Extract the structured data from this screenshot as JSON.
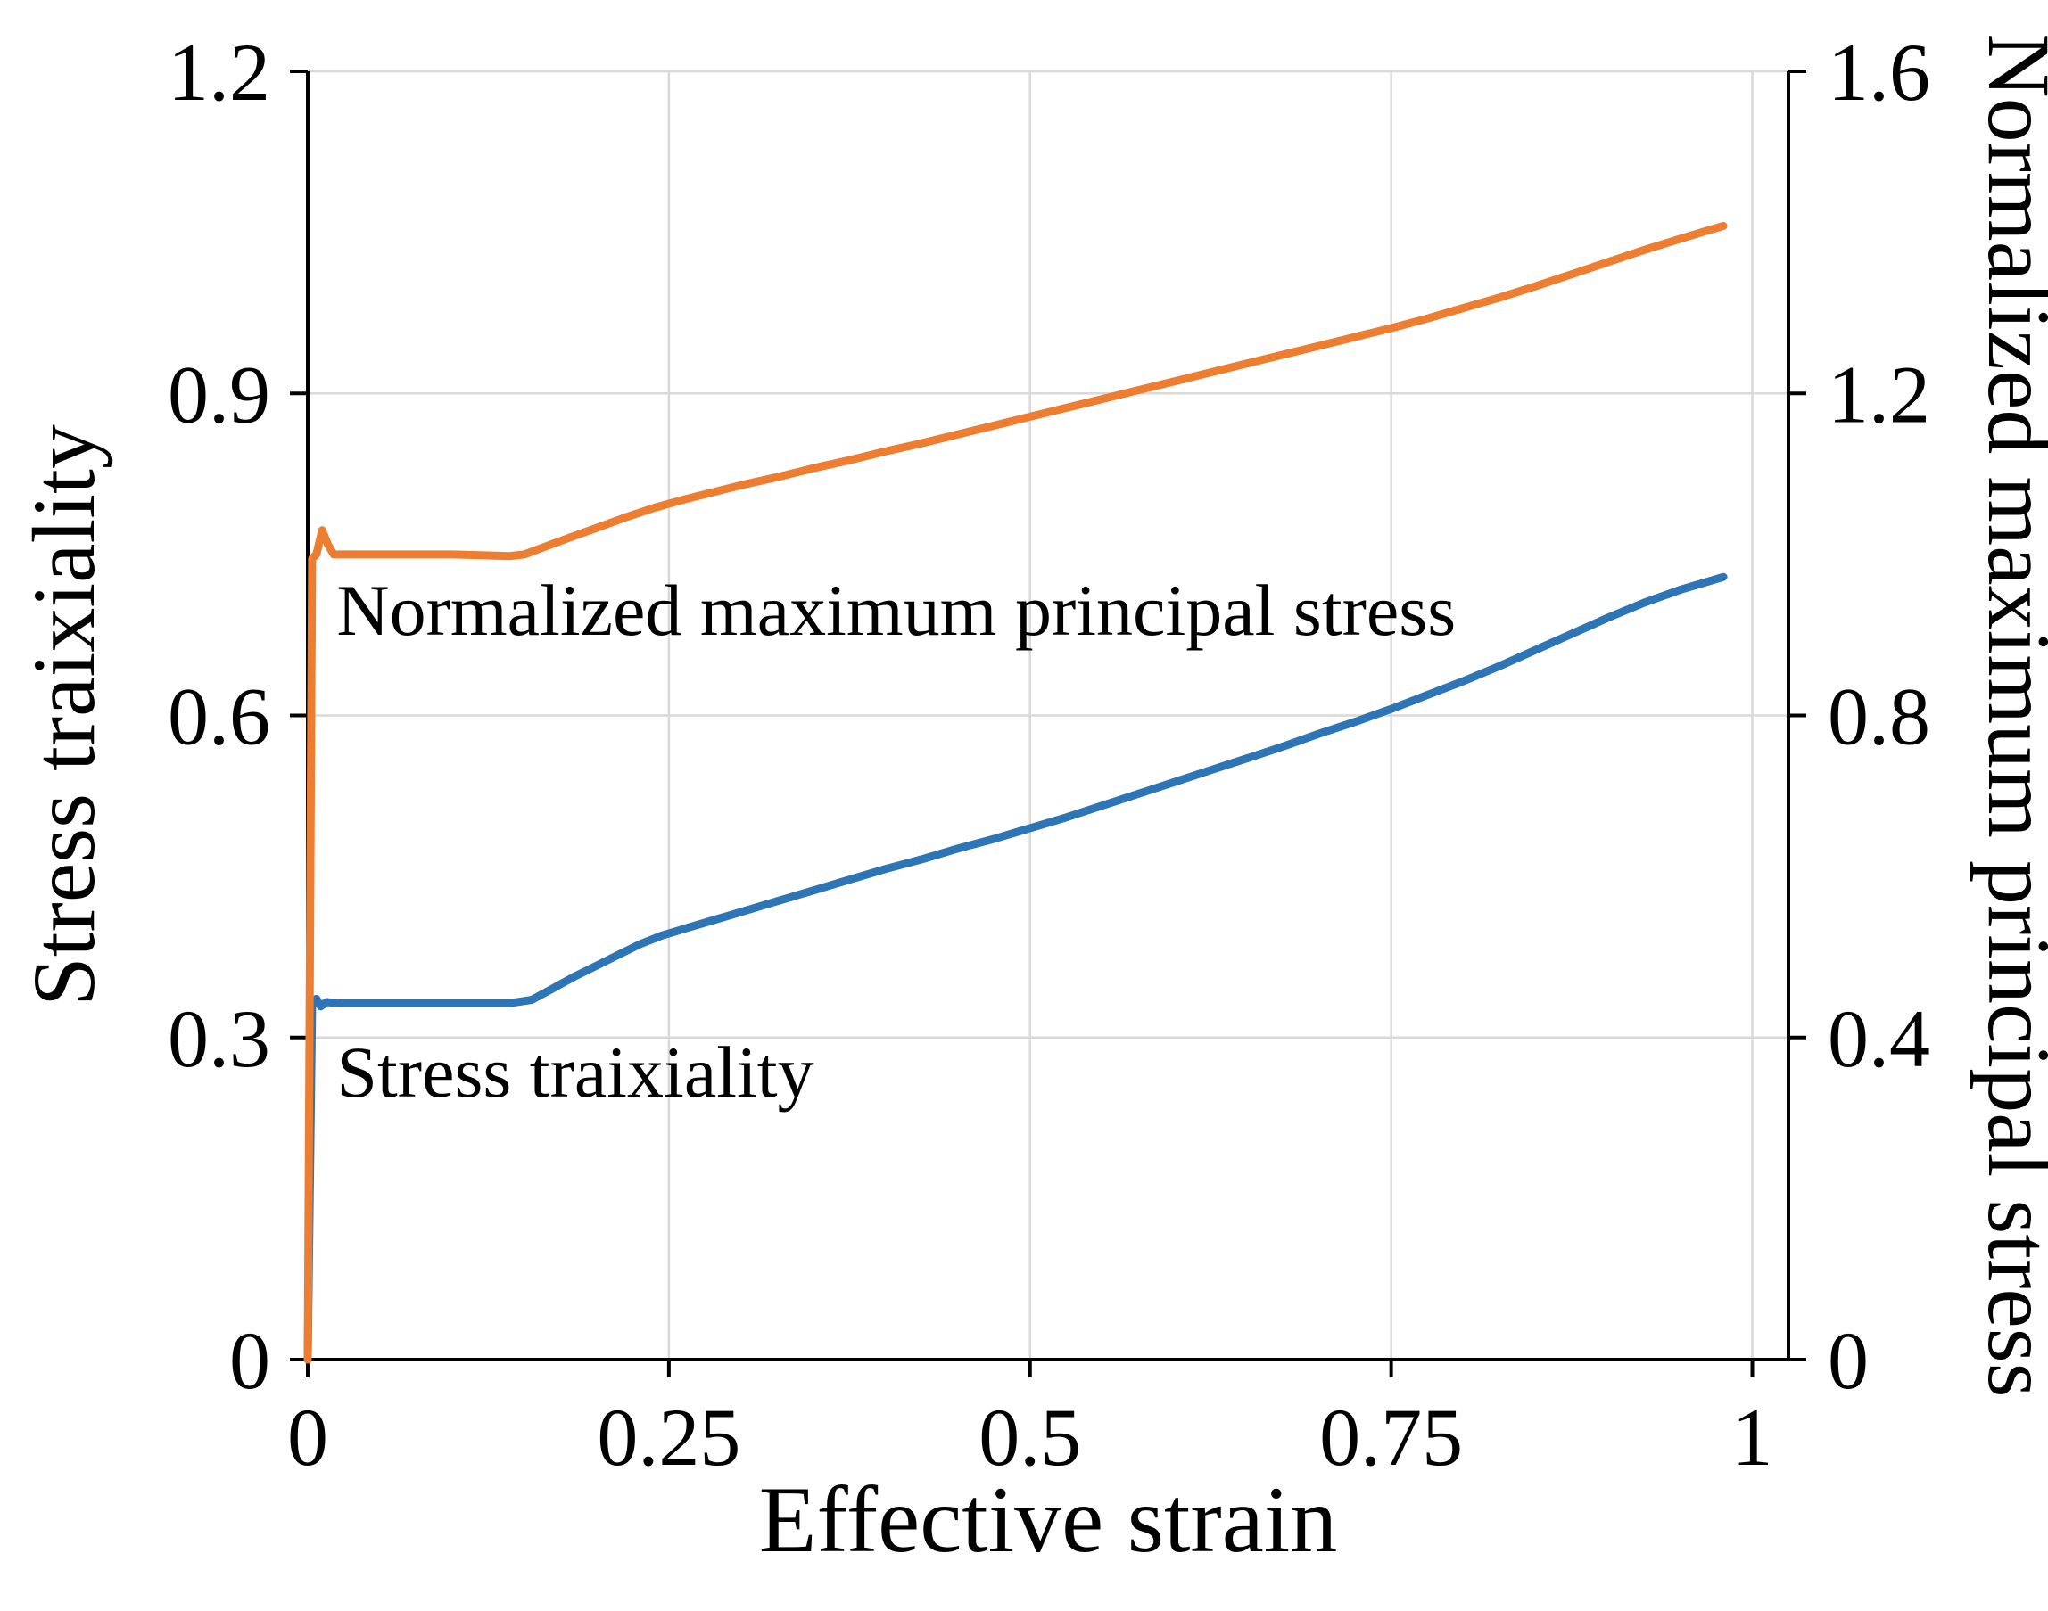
{
  "chart_data": {
    "type": "line",
    "title": "",
    "xlabel": "Effective  strain",
    "ylabel_left": "Stress traixiality",
    "ylabel_right": "Normalized maximum principal stress",
    "x_range": [
      0,
      1.025
    ],
    "y_left_range": [
      0,
      1.2
    ],
    "y_right_range": [
      0,
      1.6
    ],
    "x_ticks": [
      0,
      0.25,
      0.5,
      0.75,
      1
    ],
    "x_tick_labels": [
      "0",
      "0.25",
      "0.5",
      "0.75",
      "1"
    ],
    "y_left_ticks": [
      0,
      0.3,
      0.6,
      0.9,
      1.2
    ],
    "y_left_tick_labels": [
      "0",
      "0.3",
      "0.6",
      "0.9",
      "1.2"
    ],
    "y_right_ticks": [
      0,
      0.4,
      0.8,
      1.2,
      1.6
    ],
    "y_right_tick_labels": [
      "0",
      "0.4",
      "0.8",
      "1.2",
      "1.6"
    ],
    "grid": true,
    "legend": "none",
    "colors": {
      "background": "#ffffff",
      "grid": "#d9d9d9",
      "axis": "#000000",
      "blue_series": "#2E75B6",
      "orange_series": "#ED7D31"
    },
    "series": [
      {
        "name": "Stress traixiality",
        "axis": "left",
        "color": "#2E75B6",
        "points": [
          [
            0.0,
            0.0
          ],
          [
            0.003,
            0.33
          ],
          [
            0.006,
            0.336
          ],
          [
            0.009,
            0.329
          ],
          [
            0.013,
            0.333
          ],
          [
            0.02,
            0.332
          ],
          [
            0.04,
            0.332
          ],
          [
            0.06,
            0.332
          ],
          [
            0.08,
            0.332
          ],
          [
            0.1,
            0.332
          ],
          [
            0.12,
            0.332
          ],
          [
            0.14,
            0.332
          ],
          [
            0.155,
            0.335
          ],
          [
            0.17,
            0.346
          ],
          [
            0.185,
            0.357
          ],
          [
            0.2,
            0.367
          ],
          [
            0.215,
            0.377
          ],
          [
            0.23,
            0.387
          ],
          [
            0.245,
            0.395
          ],
          [
            0.26,
            0.401
          ],
          [
            0.28,
            0.409
          ],
          [
            0.3,
            0.417
          ],
          [
            0.325,
            0.427
          ],
          [
            0.35,
            0.437
          ],
          [
            0.375,
            0.447
          ],
          [
            0.4,
            0.457
          ],
          [
            0.425,
            0.466
          ],
          [
            0.45,
            0.476
          ],
          [
            0.475,
            0.485
          ],
          [
            0.5,
            0.495
          ],
          [
            0.525,
            0.505
          ],
          [
            0.55,
            0.516
          ],
          [
            0.575,
            0.527
          ],
          [
            0.6,
            0.538
          ],
          [
            0.625,
            0.549
          ],
          [
            0.65,
            0.56
          ],
          [
            0.675,
            0.571
          ],
          [
            0.7,
            0.583
          ],
          [
            0.725,
            0.594
          ],
          [
            0.75,
            0.606
          ],
          [
            0.775,
            0.619
          ],
          [
            0.8,
            0.632
          ],
          [
            0.825,
            0.646
          ],
          [
            0.85,
            0.661
          ],
          [
            0.875,
            0.676
          ],
          [
            0.9,
            0.691
          ],
          [
            0.925,
            0.705
          ],
          [
            0.95,
            0.717
          ],
          [
            0.965,
            0.723
          ],
          [
            0.98,
            0.729
          ]
        ]
      },
      {
        "name": "Normalized maximum principal stress",
        "axis": "right",
        "color": "#ED7D31",
        "points": [
          [
            0.0,
            0.0
          ],
          [
            0.003,
            0.995
          ],
          [
            0.006,
            1.0
          ],
          [
            0.01,
            1.03
          ],
          [
            0.014,
            1.012
          ],
          [
            0.018,
            1.0
          ],
          [
            0.03,
            1.0
          ],
          [
            0.05,
            1.0
          ],
          [
            0.08,
            1.0
          ],
          [
            0.1,
            1.0
          ],
          [
            0.12,
            0.999
          ],
          [
            0.14,
            0.998
          ],
          [
            0.15,
            1.0
          ],
          [
            0.165,
            1.01
          ],
          [
            0.18,
            1.02
          ],
          [
            0.2,
            1.033
          ],
          [
            0.22,
            1.046
          ],
          [
            0.24,
            1.058
          ],
          [
            0.26,
            1.068
          ],
          [
            0.28,
            1.077
          ],
          [
            0.3,
            1.086
          ],
          [
            0.325,
            1.096
          ],
          [
            0.35,
            1.107
          ],
          [
            0.375,
            1.117
          ],
          [
            0.4,
            1.128
          ],
          [
            0.425,
            1.138
          ],
          [
            0.45,
            1.149
          ],
          [
            0.475,
            1.16
          ],
          [
            0.5,
            1.171
          ],
          [
            0.525,
            1.182
          ],
          [
            0.55,
            1.193
          ],
          [
            0.575,
            1.204
          ],
          [
            0.6,
            1.215
          ],
          [
            0.625,
            1.226
          ],
          [
            0.65,
            1.237
          ],
          [
            0.675,
            1.248
          ],
          [
            0.7,
            1.259
          ],
          [
            0.725,
            1.27
          ],
          [
            0.75,
            1.281
          ],
          [
            0.775,
            1.293
          ],
          [
            0.8,
            1.306
          ],
          [
            0.825,
            1.319
          ],
          [
            0.85,
            1.333
          ],
          [
            0.875,
            1.348
          ],
          [
            0.9,
            1.363
          ],
          [
            0.925,
            1.378
          ],
          [
            0.95,
            1.392
          ],
          [
            0.965,
            1.4
          ],
          [
            0.98,
            1.408
          ]
        ]
      }
    ],
    "annotations": [
      {
        "text": "Normalized maximum principal stress",
        "x": 0.02,
        "y_left": 0.675,
        "color": "#000000"
      },
      {
        "text": "Stress traixiality",
        "x": 0.02,
        "y_left": 0.245,
        "color": "#000000"
      }
    ]
  }
}
